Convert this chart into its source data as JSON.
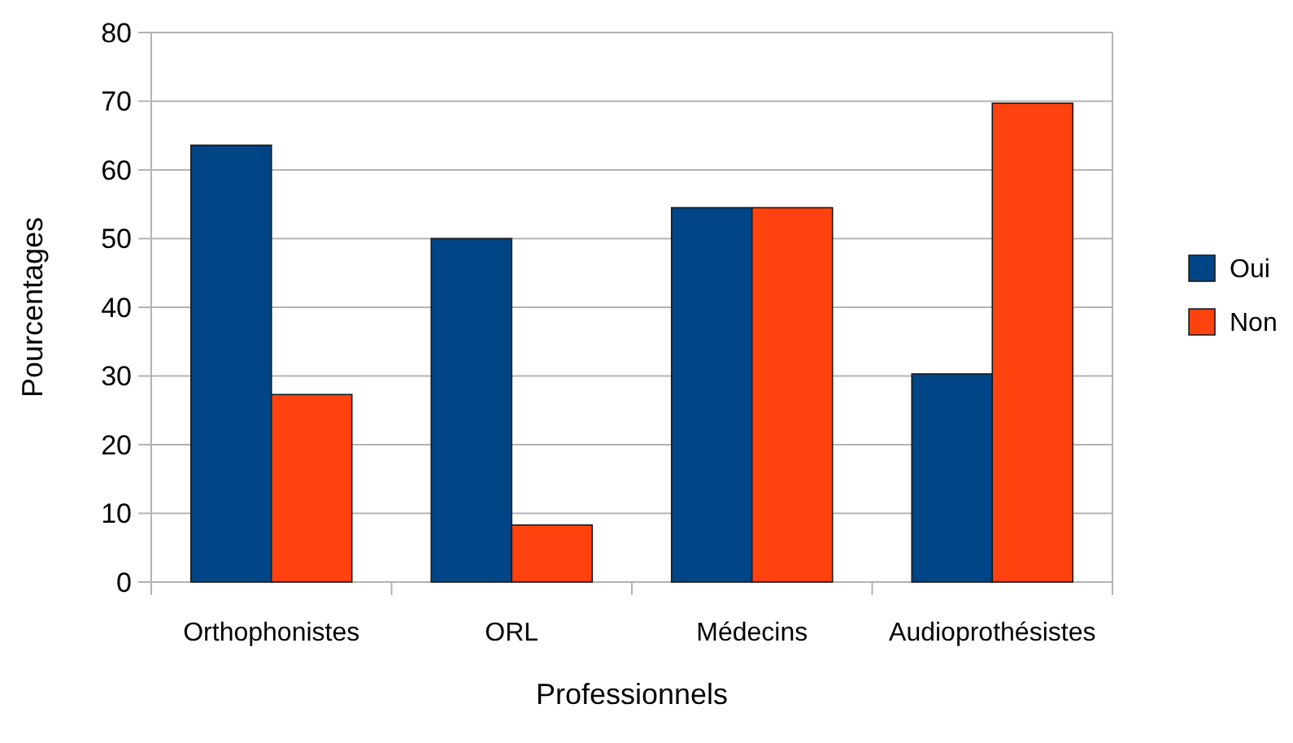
{
  "chart_data": {
    "type": "bar",
    "xlabel": "Professionnels",
    "ylabel": "Pourcentages",
    "categories": [
      "Orthophonistes",
      "ORL",
      "Médecins",
      "Audioprothésistes"
    ],
    "series": [
      {
        "name": "Oui",
        "color": "#004586",
        "values": [
          63.6,
          50,
          54.5,
          30.3
        ]
      },
      {
        "name": "Non",
        "color": "#ff420e",
        "values": [
          27.3,
          8.3,
          54.5,
          69.7
        ]
      }
    ],
    "ylim": [
      0,
      80
    ],
    "yticks": [
      0,
      10,
      20,
      30,
      40,
      50,
      60,
      70,
      80
    ],
    "grid": "y",
    "legend": "right"
  }
}
